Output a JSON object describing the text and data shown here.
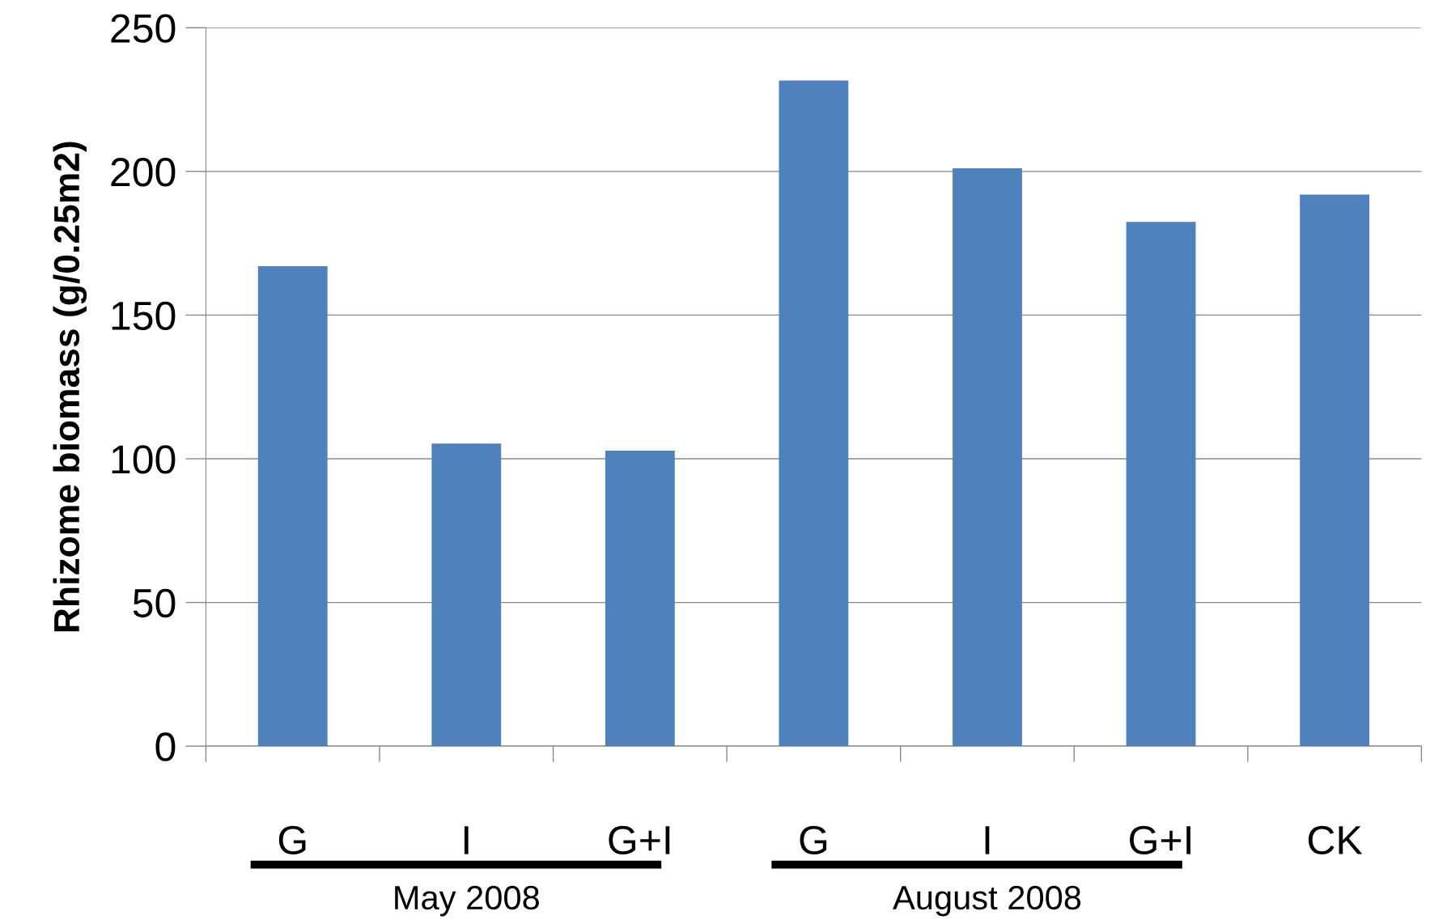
{
  "chart_data": {
    "type": "bar",
    "ylabel": "Rhizome biomass (g/0.25m2)",
    "categories": [
      "G",
      "I",
      "G+I",
      "G",
      "I",
      "G+I",
      "CK"
    ],
    "values": [
      167,
      105.3,
      102.8,
      231.6,
      201.1,
      182.4,
      191.9
    ],
    "color": "#4f81bd",
    "ylim": [
      0,
      250
    ],
    "yticks": [
      0,
      50,
      100,
      150,
      200,
      250
    ],
    "grid": "y",
    "annotations": [
      "May 2008",
      "August 2008"
    ]
  }
}
